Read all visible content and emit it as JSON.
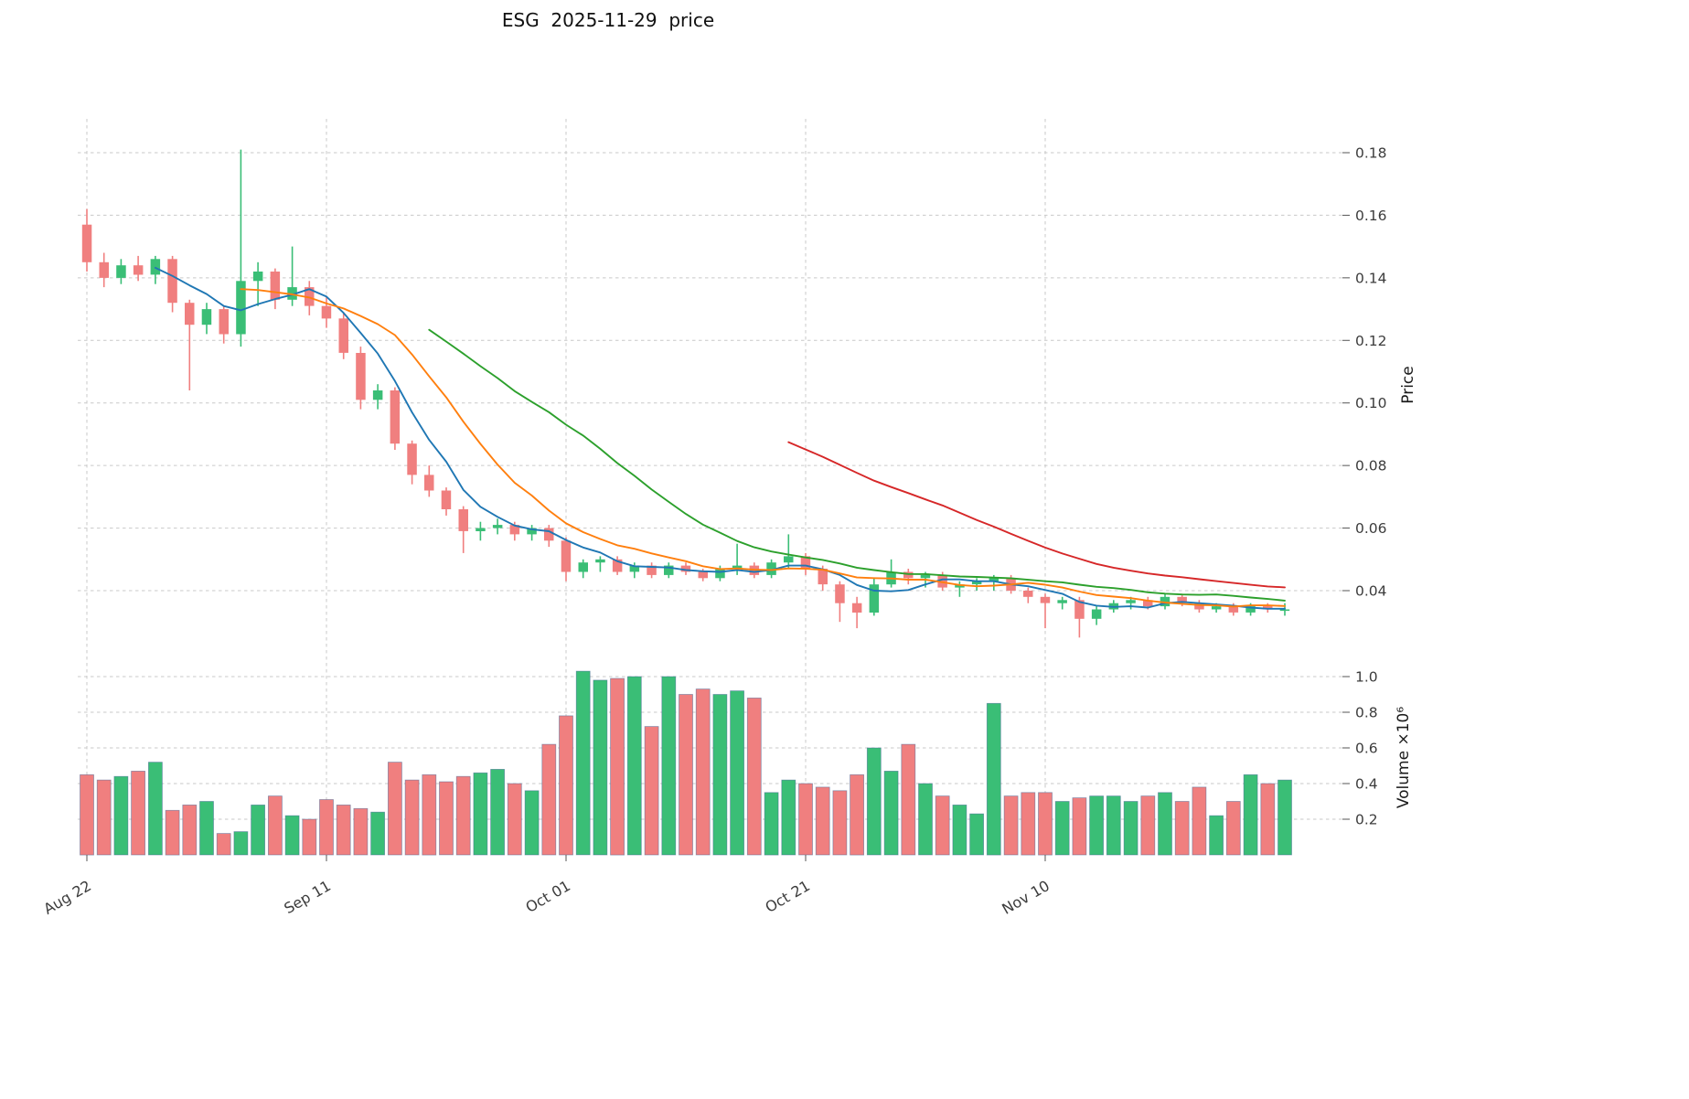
{
  "title": "ESG  2025-11-29  price",
  "chart_data": {
    "type": "candlestick",
    "subtype": "candlestick+volume",
    "symbol": "ESG",
    "as_of_date": "2025-11-29",
    "grid": true,
    "grid_style": "dashed",
    "legend": "none",
    "colors": {
      "up": "#3abe76",
      "down": "#f07f7f",
      "volume_edge": "#3f6391",
      "grid": "#c9c9c9",
      "tick_text": "#3c3c3c",
      "title_text": "#111111",
      "ma_blue": "#1f77b4",
      "ma_orange": "#ff7f0e",
      "ma_green": "#2ca02c",
      "ma_red": "#d62728"
    },
    "x_axis": {
      "ticks": [
        {
          "index": 0,
          "label": "Aug 22"
        },
        {
          "index": 14,
          "label": "Sep 11"
        },
        {
          "index": 28,
          "label": "Oct 01"
        },
        {
          "index": 42,
          "label": "Oct 21"
        },
        {
          "index": 56,
          "label": "Nov 10"
        }
      ]
    },
    "price_axis": {
      "label": "Price",
      "ticks": [
        0.04,
        0.06,
        0.08,
        0.1,
        0.12,
        0.14,
        0.16,
        0.18
      ],
      "ylim": [
        0.021,
        0.191
      ]
    },
    "volume_axis": {
      "label": "Volume ×10⁶",
      "unit": "1e6",
      "ticks": [
        0.2,
        0.4,
        0.6,
        0.8,
        1.0
      ],
      "ylim": [
        0,
        1.1
      ]
    },
    "moving_averages": [
      {
        "name": "mav5",
        "window": 5,
        "color": "#1f77b4"
      },
      {
        "name": "mav10",
        "window": 10,
        "color": "#ff7f0e"
      },
      {
        "name": "mav21",
        "window": 21,
        "color": "#2ca02c"
      },
      {
        "name": "mav42",
        "window": 42,
        "color": "#d62728"
      }
    ],
    "candles": [
      {
        "d": "2025-08-22",
        "o": 0.157,
        "h": 0.162,
        "l": 0.142,
        "c": 0.145,
        "v": 0.45
      },
      {
        "d": "2025-08-25",
        "o": 0.145,
        "h": 0.148,
        "l": 0.137,
        "c": 0.14,
        "v": 0.42
      },
      {
        "d": "2025-08-26",
        "o": 0.14,
        "h": 0.146,
        "l": 0.138,
        "c": 0.144,
        "v": 0.44
      },
      {
        "d": "2025-08-27",
        "o": 0.144,
        "h": 0.147,
        "l": 0.139,
        "c": 0.141,
        "v": 0.47
      },
      {
        "d": "2025-08-28",
        "o": 0.141,
        "h": 0.147,
        "l": 0.138,
        "c": 0.146,
        "v": 0.52
      },
      {
        "d": "2025-08-29",
        "o": 0.146,
        "h": 0.147,
        "l": 0.129,
        "c": 0.132,
        "v": 0.25
      },
      {
        "d": "2025-09-01",
        "o": 0.132,
        "h": 0.133,
        "l": 0.104,
        "c": 0.125,
        "v": 0.28
      },
      {
        "d": "2025-09-02",
        "o": 0.125,
        "h": 0.132,
        "l": 0.122,
        "c": 0.13,
        "v": 0.3
      },
      {
        "d": "2025-09-03",
        "o": 0.13,
        "h": 0.131,
        "l": 0.119,
        "c": 0.122,
        "v": 0.12
      },
      {
        "d": "2025-09-04",
        "o": 0.122,
        "h": 0.181,
        "l": 0.118,
        "c": 0.139,
        "v": 0.13
      },
      {
        "d": "2025-09-05",
        "o": 0.139,
        "h": 0.145,
        "l": 0.131,
        "c": 0.142,
        "v": 0.28
      },
      {
        "d": "2025-09-08",
        "o": 0.142,
        "h": 0.143,
        "l": 0.13,
        "c": 0.133,
        "v": 0.33
      },
      {
        "d": "2025-09-09",
        "o": 0.133,
        "h": 0.15,
        "l": 0.131,
        "c": 0.137,
        "v": 0.22
      },
      {
        "d": "2025-09-10",
        "o": 0.137,
        "h": 0.139,
        "l": 0.128,
        "c": 0.131,
        "v": 0.2
      },
      {
        "d": "2025-09-11",
        "o": 0.131,
        "h": 0.134,
        "l": 0.124,
        "c": 0.127,
        "v": 0.31
      },
      {
        "d": "2025-09-12",
        "o": 0.127,
        "h": 0.129,
        "l": 0.114,
        "c": 0.116,
        "v": 0.28
      },
      {
        "d": "2025-09-15",
        "o": 0.116,
        "h": 0.118,
        "l": 0.098,
        "c": 0.101,
        "v": 0.26
      },
      {
        "d": "2025-09-16",
        "o": 0.101,
        "h": 0.106,
        "l": 0.098,
        "c": 0.104,
        "v": 0.24
      },
      {
        "d": "2025-09-17",
        "o": 0.104,
        "h": 0.105,
        "l": 0.085,
        "c": 0.087,
        "v": 0.52
      },
      {
        "d": "2025-09-18",
        "o": 0.087,
        "h": 0.088,
        "l": 0.074,
        "c": 0.077,
        "v": 0.42
      },
      {
        "d": "2025-09-19",
        "o": 0.077,
        "h": 0.08,
        "l": 0.07,
        "c": 0.072,
        "v": 0.45
      },
      {
        "d": "2025-09-22",
        "o": 0.072,
        "h": 0.073,
        "l": 0.064,
        "c": 0.066,
        "v": 0.41
      },
      {
        "d": "2025-09-23",
        "o": 0.066,
        "h": 0.067,
        "l": 0.052,
        "c": 0.059,
        "v": 0.44
      },
      {
        "d": "2025-09-24",
        "o": 0.059,
        "h": 0.062,
        "l": 0.056,
        "c": 0.06,
        "v": 0.46
      },
      {
        "d": "2025-09-25",
        "o": 0.06,
        "h": 0.063,
        "l": 0.058,
        "c": 0.061,
        "v": 0.48
      },
      {
        "d": "2025-09-26",
        "o": 0.061,
        "h": 0.062,
        "l": 0.056,
        "c": 0.058,
        "v": 0.4
      },
      {
        "d": "2025-09-29",
        "o": 0.058,
        "h": 0.061,
        "l": 0.056,
        "c": 0.06,
        "v": 0.36
      },
      {
        "d": "2025-09-30",
        "o": 0.06,
        "h": 0.061,
        "l": 0.054,
        "c": 0.056,
        "v": 0.62
      },
      {
        "d": "2025-10-01",
        "o": 0.056,
        "h": 0.057,
        "l": 0.043,
        "c": 0.046,
        "v": 0.78
      },
      {
        "d": "2025-10-02",
        "o": 0.046,
        "h": 0.05,
        "l": 0.044,
        "c": 0.049,
        "v": 1.03
      },
      {
        "d": "2025-10-03",
        "o": 0.049,
        "h": 0.051,
        "l": 0.046,
        "c": 0.05,
        "v": 0.98
      },
      {
        "d": "2025-10-06",
        "o": 0.05,
        "h": 0.051,
        "l": 0.045,
        "c": 0.046,
        "v": 0.99
      },
      {
        "d": "2025-10-07",
        "o": 0.046,
        "h": 0.049,
        "l": 0.044,
        "c": 0.048,
        "v": 1.0
      },
      {
        "d": "2025-10-08",
        "o": 0.048,
        "h": 0.049,
        "l": 0.044,
        "c": 0.045,
        "v": 0.72
      },
      {
        "d": "2025-10-09",
        "o": 0.045,
        "h": 0.049,
        "l": 0.044,
        "c": 0.048,
        "v": 1.0
      },
      {
        "d": "2025-10-10",
        "o": 0.048,
        "h": 0.049,
        "l": 0.045,
        "c": 0.046,
        "v": 0.9
      },
      {
        "d": "2025-10-13",
        "o": 0.046,
        "h": 0.047,
        "l": 0.043,
        "c": 0.044,
        "v": 0.93
      },
      {
        "d": "2025-10-14",
        "o": 0.044,
        "h": 0.048,
        "l": 0.043,
        "c": 0.047,
        "v": 0.9
      },
      {
        "d": "2025-10-15",
        "o": 0.047,
        "h": 0.055,
        "l": 0.045,
        "c": 0.048,
        "v": 0.92
      },
      {
        "d": "2025-10-16",
        "o": 0.048,
        "h": 0.049,
        "l": 0.044,
        "c": 0.045,
        "v": 0.88
      },
      {
        "d": "2025-10-17",
        "o": 0.045,
        "h": 0.05,
        "l": 0.044,
        "c": 0.049,
        "v": 0.35
      },
      {
        "d": "2025-10-20",
        "o": 0.049,
        "h": 0.058,
        "l": 0.047,
        "c": 0.051,
        "v": 0.42
      },
      {
        "d": "2025-10-21",
        "o": 0.051,
        "h": 0.052,
        "l": 0.045,
        "c": 0.047,
        "v": 0.4
      },
      {
        "d": "2025-10-22",
        "o": 0.047,
        "h": 0.048,
        "l": 0.04,
        "c": 0.042,
        "v": 0.38
      },
      {
        "d": "2025-10-23",
        "o": 0.042,
        "h": 0.043,
        "l": 0.03,
        "c": 0.036,
        "v": 0.36
      },
      {
        "d": "2025-10-24",
        "o": 0.036,
        "h": 0.038,
        "l": 0.028,
        "c": 0.033,
        "v": 0.45
      },
      {
        "d": "2025-10-27",
        "o": 0.033,
        "h": 0.044,
        "l": 0.032,
        "c": 0.042,
        "v": 0.6
      },
      {
        "d": "2025-10-28",
        "o": 0.042,
        "h": 0.05,
        "l": 0.041,
        "c": 0.046,
        "v": 0.47
      },
      {
        "d": "2025-10-29",
        "o": 0.046,
        "h": 0.047,
        "l": 0.042,
        "c": 0.044,
        "v": 0.62
      },
      {
        "d": "2025-10-30",
        "o": 0.044,
        "h": 0.046,
        "l": 0.041,
        "c": 0.045,
        "v": 0.4
      },
      {
        "d": "2025-10-31",
        "o": 0.045,
        "h": 0.046,
        "l": 0.04,
        "c": 0.041,
        "v": 0.33
      },
      {
        "d": "2025-11-03",
        "o": 0.041,
        "h": 0.043,
        "l": 0.038,
        "c": 0.042,
        "v": 0.28
      },
      {
        "d": "2025-11-04",
        "o": 0.042,
        "h": 0.044,
        "l": 0.04,
        "c": 0.043,
        "v": 0.23
      },
      {
        "d": "2025-11-05",
        "o": 0.043,
        "h": 0.045,
        "l": 0.04,
        "c": 0.044,
        "v": 0.85
      },
      {
        "d": "2025-11-06",
        "o": 0.044,
        "h": 0.045,
        "l": 0.039,
        "c": 0.04,
        "v": 0.33
      },
      {
        "d": "2025-11-07",
        "o": 0.04,
        "h": 0.041,
        "l": 0.036,
        "c": 0.038,
        "v": 0.35
      },
      {
        "d": "2025-11-10",
        "o": 0.038,
        "h": 0.039,
        "l": 0.028,
        "c": 0.036,
        "v": 0.35
      },
      {
        "d": "2025-11-11",
        "o": 0.036,
        "h": 0.038,
        "l": 0.034,
        "c": 0.037,
        "v": 0.3
      },
      {
        "d": "2025-11-12",
        "o": 0.037,
        "h": 0.038,
        "l": 0.025,
        "c": 0.031,
        "v": 0.32
      },
      {
        "d": "2025-11-13",
        "o": 0.031,
        "h": 0.035,
        "l": 0.029,
        "c": 0.034,
        "v": 0.33
      },
      {
        "d": "2025-11-14",
        "o": 0.034,
        "h": 0.037,
        "l": 0.033,
        "c": 0.036,
        "v": 0.33
      },
      {
        "d": "2025-11-17",
        "o": 0.036,
        "h": 0.038,
        "l": 0.034,
        "c": 0.037,
        "v": 0.3
      },
      {
        "d": "2025-11-18",
        "o": 0.037,
        "h": 0.038,
        "l": 0.034,
        "c": 0.035,
        "v": 0.33
      },
      {
        "d": "2025-11-19",
        "o": 0.035,
        "h": 0.039,
        "l": 0.034,
        "c": 0.038,
        "v": 0.35
      },
      {
        "d": "2025-11-20",
        "o": 0.038,
        "h": 0.039,
        "l": 0.035,
        "c": 0.036,
        "v": 0.3
      },
      {
        "d": "2025-11-21",
        "o": 0.036,
        "h": 0.037,
        "l": 0.033,
        "c": 0.034,
        "v": 0.38
      },
      {
        "d": "2025-11-24",
        "o": 0.034,
        "h": 0.036,
        "l": 0.033,
        "c": 0.035,
        "v": 0.22
      },
      {
        "d": "2025-11-25",
        "o": 0.035,
        "h": 0.036,
        "l": 0.032,
        "c": 0.033,
        "v": 0.3
      },
      {
        "d": "2025-11-26",
        "o": 0.033,
        "h": 0.036,
        "l": 0.032,
        "c": 0.035,
        "v": 0.45
      },
      {
        "d": "2025-11-27",
        "o": 0.035,
        "h": 0.036,
        "l": 0.033,
        "c": 0.034,
        "v": 0.4
      },
      {
        "d": "2025-11-28",
        "o": 0.034,
        "h": 0.036,
        "l": 0.032,
        "c": 0.034,
        "v": 0.42
      }
    ]
  }
}
